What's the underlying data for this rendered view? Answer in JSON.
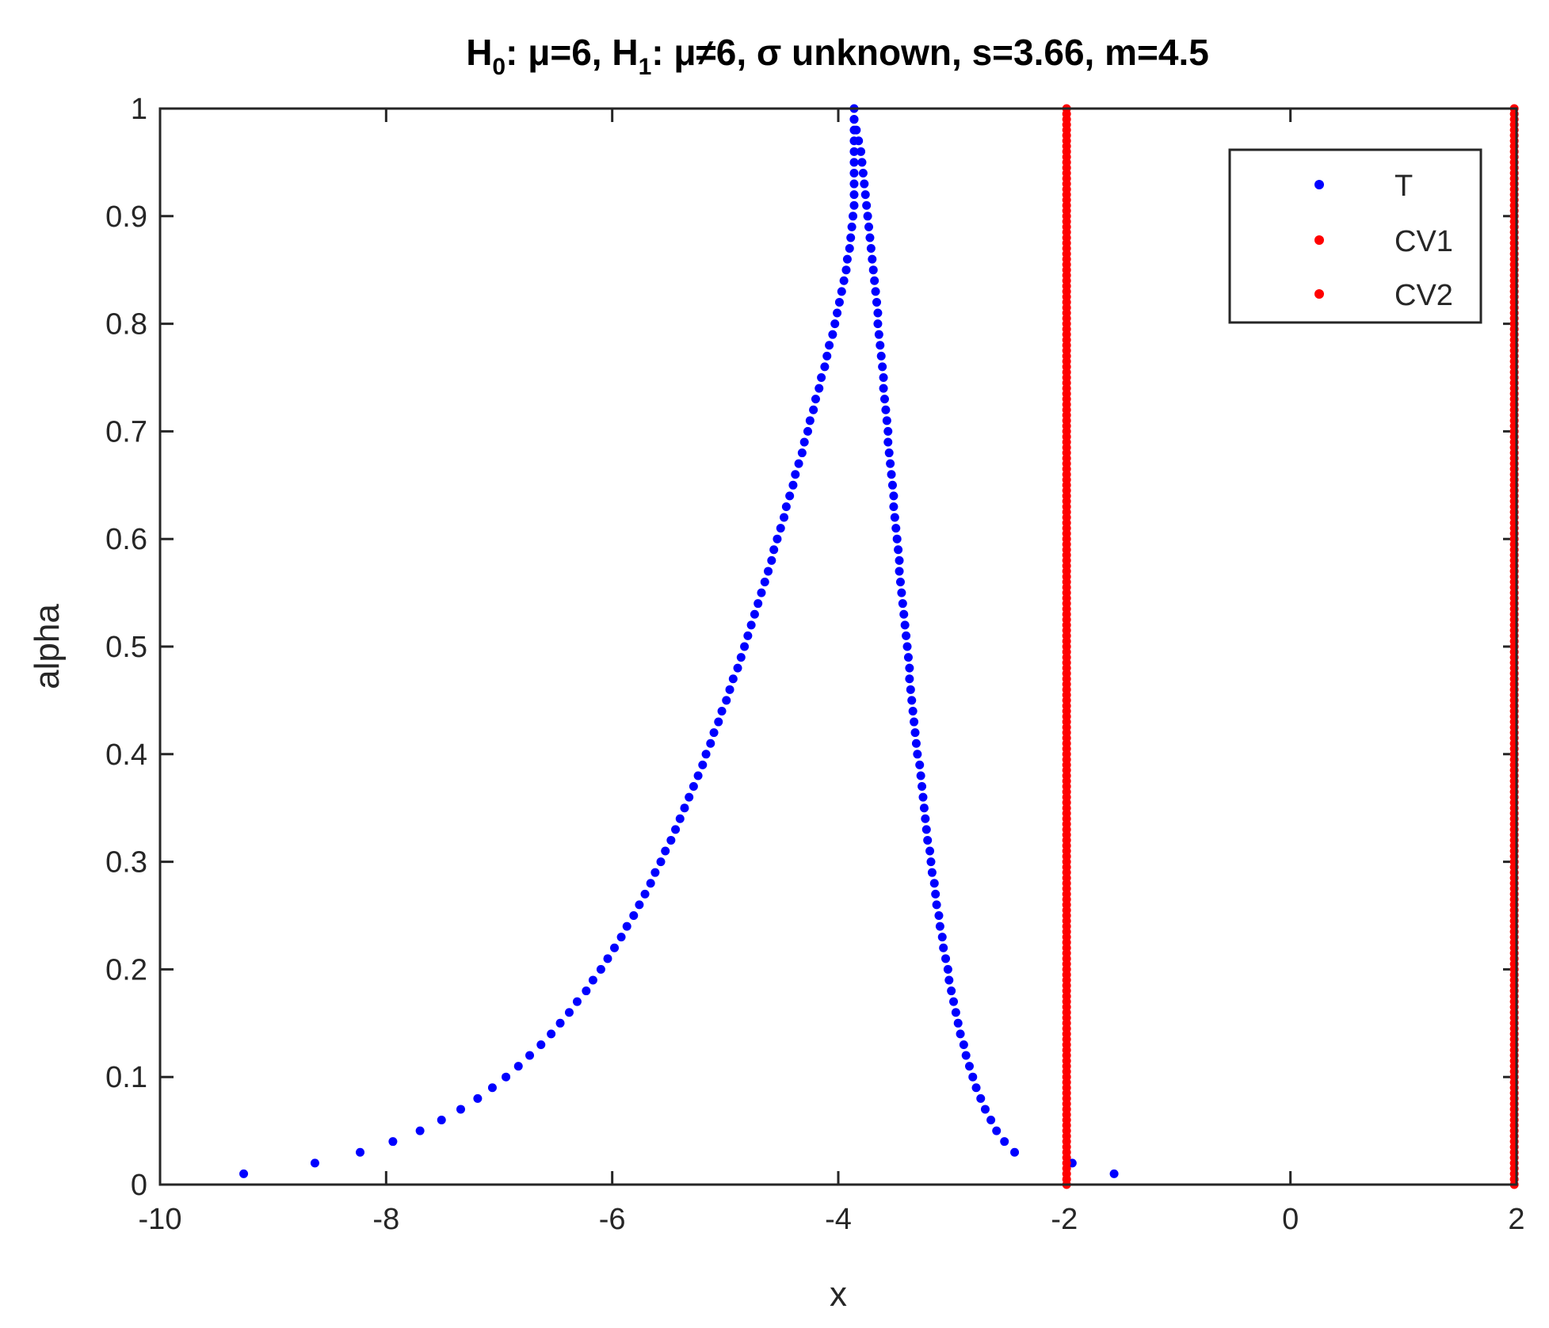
{
  "chart_data": {
    "type": "scatter",
    "title": {
      "parts": [
        {
          "text": "H",
          "sub": false
        },
        {
          "text": "0",
          "sub": true
        },
        {
          "text": ": μ=6, H",
          "sub": false
        },
        {
          "text": "1",
          "sub": true
        },
        {
          "text": ": μ≠6, σ unknown,   s=3.66, m=4.5",
          "sub": false
        }
      ]
    },
    "xlabel": "x",
    "ylabel": "alpha",
    "xlim": [
      -10,
      2
    ],
    "ylim": [
      0,
      1
    ],
    "xticks": [
      -10,
      -8,
      -6,
      -4,
      -2,
      0,
      2
    ],
    "yticks": [
      0,
      0.1,
      0.2,
      0.3,
      0.4,
      0.5,
      0.6,
      0.7,
      0.8,
      0.9,
      1
    ],
    "ytick_labels": [
      "0",
      "0.1",
      "0.2",
      "0.3",
      "0.4",
      "0.5",
      "0.6",
      "0.7",
      "0.8",
      "0.9",
      "1"
    ],
    "grid": false,
    "legend_position": "top-right",
    "series": [
      {
        "name": "T",
        "color": "#0000ff",
        "points": [
          [
            -9.26,
            0.01
          ],
          [
            -8.63,
            0.02
          ],
          [
            -8.23,
            0.03
          ],
          [
            -7.94,
            0.04
          ],
          [
            -7.7,
            0.05
          ],
          [
            -7.51,
            0.06
          ],
          [
            -7.34,
            0.07
          ],
          [
            -7.19,
            0.08
          ],
          [
            -7.06,
            0.09
          ],
          [
            -6.94,
            0.1
          ],
          [
            -6.83,
            0.11
          ],
          [
            -6.73,
            0.12
          ],
          [
            -6.63,
            0.13
          ],
          [
            -6.54,
            0.14
          ],
          [
            -6.46,
            0.15
          ],
          [
            -6.38,
            0.16
          ],
          [
            -6.31,
            0.17
          ],
          [
            -6.23,
            0.18
          ],
          [
            -6.17,
            0.19
          ],
          [
            -6.1,
            0.2
          ],
          [
            -6.04,
            0.21
          ],
          [
            -5.98,
            0.22
          ],
          [
            -5.92,
            0.23
          ],
          [
            -5.87,
            0.24
          ],
          [
            -5.81,
            0.25
          ],
          [
            -5.76,
            0.26
          ],
          [
            -5.71,
            0.27
          ],
          [
            -5.66,
            0.28
          ],
          [
            -5.62,
            0.29
          ],
          [
            -5.57,
            0.3
          ],
          [
            -5.53,
            0.31
          ],
          [
            -5.48,
            0.32
          ],
          [
            -5.44,
            0.33
          ],
          [
            -5.4,
            0.34
          ],
          [
            -5.36,
            0.35
          ],
          [
            -5.32,
            0.36
          ],
          [
            -5.28,
            0.37
          ],
          [
            -5.24,
            0.38
          ],
          [
            -5.2,
            0.39
          ],
          [
            -5.17,
            0.4
          ],
          [
            -5.13,
            0.41
          ],
          [
            -5.1,
            0.42
          ],
          [
            -5.06,
            0.43
          ],
          [
            -5.03,
            0.44
          ],
          [
            -4.99,
            0.45
          ],
          [
            -4.96,
            0.46
          ],
          [
            -4.93,
            0.47
          ],
          [
            -4.89,
            0.48
          ],
          [
            -4.86,
            0.49
          ],
          [
            -4.83,
            0.5
          ],
          [
            -4.8,
            0.51
          ],
          [
            -4.77,
            0.52
          ],
          [
            -4.74,
            0.53
          ],
          [
            -4.71,
            0.54
          ],
          [
            -4.68,
            0.55
          ],
          [
            -4.65,
            0.56
          ],
          [
            -4.62,
            0.57
          ],
          [
            -4.59,
            0.58
          ],
          [
            -4.57,
            0.59
          ],
          [
            -4.54,
            0.6
          ],
          [
            -4.51,
            0.61
          ],
          [
            -4.48,
            0.62
          ],
          [
            -4.46,
            0.63
          ],
          [
            -4.43,
            0.64
          ],
          [
            -4.4,
            0.65
          ],
          [
            -4.38,
            0.66
          ],
          [
            -4.35,
            0.67
          ],
          [
            -4.32,
            0.68
          ],
          [
            -4.3,
            0.69
          ],
          [
            -4.27,
            0.7
          ],
          [
            -4.25,
            0.71
          ],
          [
            -4.22,
            0.72
          ],
          [
            -4.2,
            0.73
          ],
          [
            -4.17,
            0.74
          ],
          [
            -4.15,
            0.75
          ],
          [
            -4.12,
            0.76
          ],
          [
            -4.1,
            0.77
          ],
          [
            -4.08,
            0.78
          ],
          [
            -4.05,
            0.79
          ],
          [
            -4.03,
            0.8
          ],
          [
            -4.01,
            0.81
          ],
          [
            -3.99,
            0.82
          ],
          [
            -3.97,
            0.83
          ],
          [
            -3.95,
            0.84
          ],
          [
            -3.93,
            0.85
          ],
          [
            -3.92,
            0.86
          ],
          [
            -3.9,
            0.87
          ],
          [
            -3.89,
            0.88
          ],
          [
            -3.88,
            0.89
          ],
          [
            -3.87,
            0.9
          ],
          [
            -3.86,
            0.91
          ],
          [
            -3.86,
            0.92
          ],
          [
            -3.86,
            0.93
          ],
          [
            -3.86,
            0.94
          ],
          [
            -3.86,
            0.95
          ],
          [
            -3.86,
            0.96
          ],
          [
            -3.86,
            0.97
          ],
          [
            -3.86,
            0.98
          ],
          [
            -3.86,
            0.99
          ],
          [
            -3.86,
            1.0
          ],
          [
            -3.86,
            0.99
          ],
          [
            -3.84,
            0.98
          ],
          [
            -3.82,
            0.97
          ],
          [
            -3.8,
            0.96
          ],
          [
            -3.79,
            0.95
          ],
          [
            -3.78,
            0.94
          ],
          [
            -3.77,
            0.93
          ],
          [
            -3.76,
            0.92
          ],
          [
            -3.75,
            0.91
          ],
          [
            -3.74,
            0.9
          ],
          [
            -3.73,
            0.89
          ],
          [
            -3.72,
            0.88
          ],
          [
            -3.71,
            0.87
          ],
          [
            -3.7,
            0.86
          ],
          [
            -3.69,
            0.85
          ],
          [
            -3.68,
            0.84
          ],
          [
            -3.67,
            0.83
          ],
          [
            -3.66,
            0.82
          ],
          [
            -3.65,
            0.81
          ],
          [
            -3.65,
            0.8
          ],
          [
            -3.64,
            0.79
          ],
          [
            -3.63,
            0.78
          ],
          [
            -3.62,
            0.77
          ],
          [
            -3.61,
            0.76
          ],
          [
            -3.6,
            0.75
          ],
          [
            -3.6,
            0.74
          ],
          [
            -3.59,
            0.73
          ],
          [
            -3.58,
            0.72
          ],
          [
            -3.57,
            0.71
          ],
          [
            -3.56,
            0.7
          ],
          [
            -3.56,
            0.69
          ],
          [
            -3.55,
            0.68
          ],
          [
            -3.54,
            0.67
          ],
          [
            -3.53,
            0.66
          ],
          [
            -3.52,
            0.65
          ],
          [
            -3.51,
            0.64
          ],
          [
            -3.51,
            0.63
          ],
          [
            -3.5,
            0.62
          ],
          [
            -3.49,
            0.61
          ],
          [
            -3.48,
            0.6
          ],
          [
            -3.47,
            0.59
          ],
          [
            -3.46,
            0.58
          ],
          [
            -3.46,
            0.57
          ],
          [
            -3.45,
            0.56
          ],
          [
            -3.44,
            0.55
          ],
          [
            -3.43,
            0.54
          ],
          [
            -3.42,
            0.53
          ],
          [
            -3.41,
            0.52
          ],
          [
            -3.4,
            0.51
          ],
          [
            -3.39,
            0.5
          ],
          [
            -3.38,
            0.49
          ],
          [
            -3.37,
            0.48
          ],
          [
            -3.37,
            0.47
          ],
          [
            -3.36,
            0.46
          ],
          [
            -3.35,
            0.45
          ],
          [
            -3.34,
            0.44
          ],
          [
            -3.33,
            0.43
          ],
          [
            -3.32,
            0.42
          ],
          [
            -3.31,
            0.41
          ],
          [
            -3.3,
            0.4
          ],
          [
            -3.28,
            0.39
          ],
          [
            -3.27,
            0.38
          ],
          [
            -3.26,
            0.37
          ],
          [
            -3.25,
            0.36
          ],
          [
            -3.24,
            0.35
          ],
          [
            -3.23,
            0.34
          ],
          [
            -3.22,
            0.33
          ],
          [
            -3.21,
            0.32
          ],
          [
            -3.19,
            0.31
          ],
          [
            -3.18,
            0.3
          ],
          [
            -3.17,
            0.29
          ],
          [
            -3.15,
            0.28
          ],
          [
            -3.14,
            0.27
          ],
          [
            -3.13,
            0.26
          ],
          [
            -3.11,
            0.25
          ],
          [
            -3.1,
            0.24
          ],
          [
            -3.08,
            0.23
          ],
          [
            -3.07,
            0.22
          ],
          [
            -3.05,
            0.21
          ],
          [
            -3.03,
            0.2
          ],
          [
            -3.02,
            0.19
          ],
          [
            -3.0,
            0.18
          ],
          [
            -2.98,
            0.17
          ],
          [
            -2.96,
            0.16
          ],
          [
            -2.94,
            0.15
          ],
          [
            -2.92,
            0.14
          ],
          [
            -2.89,
            0.13
          ],
          [
            -2.87,
            0.12
          ],
          [
            -2.84,
            0.11
          ],
          [
            -2.81,
            0.1
          ],
          [
            -2.78,
            0.09
          ],
          [
            -2.74,
            0.08
          ],
          [
            -2.7,
            0.07
          ],
          [
            -2.65,
            0.06
          ],
          [
            -2.6,
            0.05
          ],
          [
            -2.53,
            0.04
          ],
          [
            -2.44,
            0.03
          ],
          [
            -1.93,
            0.02
          ],
          [
            -1.56,
            0.01
          ]
        ]
      },
      {
        "name": "CV1",
        "color": "#ff0000",
        "x": -1.98,
        "y_range": [
          0,
          1
        ],
        "step": 0.005
      },
      {
        "name": "CV2",
        "color": "#ff0000",
        "x": 1.98,
        "y_range": [
          0,
          1
        ],
        "step": 0.005
      }
    ]
  }
}
